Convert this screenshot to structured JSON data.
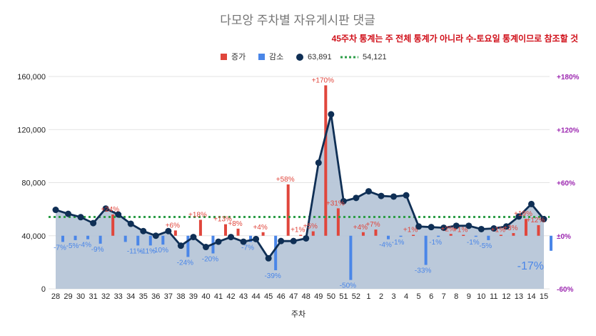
{
  "chart_data": {
    "type": "bar",
    "title": "다모앙 주차별 자유게시판 댓글",
    "notice": "45주차 통계는 주 전체 통계가 아니라 수-토요일 통계이므로 참조할 것",
    "xlabel": "주차",
    "legend": {
      "increase": "증가",
      "decrease": "감소",
      "series_line": "63,891",
      "avg_line": "54,121"
    },
    "colors": {
      "increase": "#e0463c",
      "decrease": "#4a86e8",
      "line": "#0f2f55",
      "area": "#b4c3d6",
      "avg": "#2e9e48",
      "right_axis": "#9c27b0"
    },
    "categories": [
      "28",
      "29",
      "30",
      "31",
      "32",
      "33",
      "34",
      "35",
      "36",
      "37",
      "38",
      "39",
      "40",
      "41",
      "42",
      "43",
      "44",
      "45",
      "46",
      "47",
      "48",
      "49",
      "50",
      "51",
      "52",
      "1",
      "2",
      "3",
      "4",
      "5",
      "6",
      "7",
      "8",
      "9",
      "10",
      "11",
      "12",
      "13",
      "14",
      "15"
    ],
    "comments": [
      59500,
      56500,
      54000,
      49500,
      60500,
      56000,
      49000,
      43500,
      40000,
      43500,
      32500,
      39000,
      31500,
      35500,
      39000,
      35500,
      37500,
      23000,
      36000,
      36000,
      38000,
      95000,
      131500,
      66000,
      68500,
      73500,
      70000,
      69500,
      70500,
      47000,
      46500,
      46000,
      47500,
      47500,
      45000,
      45500,
      47000,
      54500,
      63891,
      52500
    ],
    "change_pct": [
      -7,
      -5,
      -4,
      -9,
      24,
      -7,
      -11,
      -11,
      -10,
      6,
      -24,
      18,
      -20,
      13,
      8,
      -7,
      4,
      -39,
      58,
      1,
      5,
      170,
      31,
      -50,
      4,
      7,
      -4,
      -1,
      1,
      -33,
      -1,
      2,
      1,
      -1,
      -5,
      1,
      3,
      19,
      12,
      -17
    ],
    "change_labels": [
      "-7%",
      "-5%",
      "-4%",
      "-9%",
      "+24%",
      "",
      "-11%",
      "-11%",
      "-10%",
      "+6%",
      "-24%",
      "+18%",
      "-20%",
      "+13%",
      "+8%",
      "-7%",
      "+4%",
      "-39%",
      "+58%",
      "+1%",
      "+5%",
      "+170%",
      "+31%",
      "-50%",
      "+4%",
      "+7%",
      "-4%",
      "-1%",
      "+1%",
      "-33%",
      "-1%",
      "+2%",
      "+1%",
      "-1%",
      "-5%",
      "+1%",
      "+3%",
      "+19%",
      "+12%",
      "-17%"
    ],
    "average": 54121,
    "left_axis": {
      "min": 0,
      "max": 160000,
      "ticks": [
        "0",
        "40,000",
        "80,000",
        "120,000",
        "160,000"
      ]
    },
    "right_axis": {
      "min": -60,
      "max": 180,
      "ticks": [
        "-60%",
        "±0%",
        "+60%",
        "+120%",
        "+180%"
      ]
    },
    "legend_position": "top",
    "grid": true
  }
}
